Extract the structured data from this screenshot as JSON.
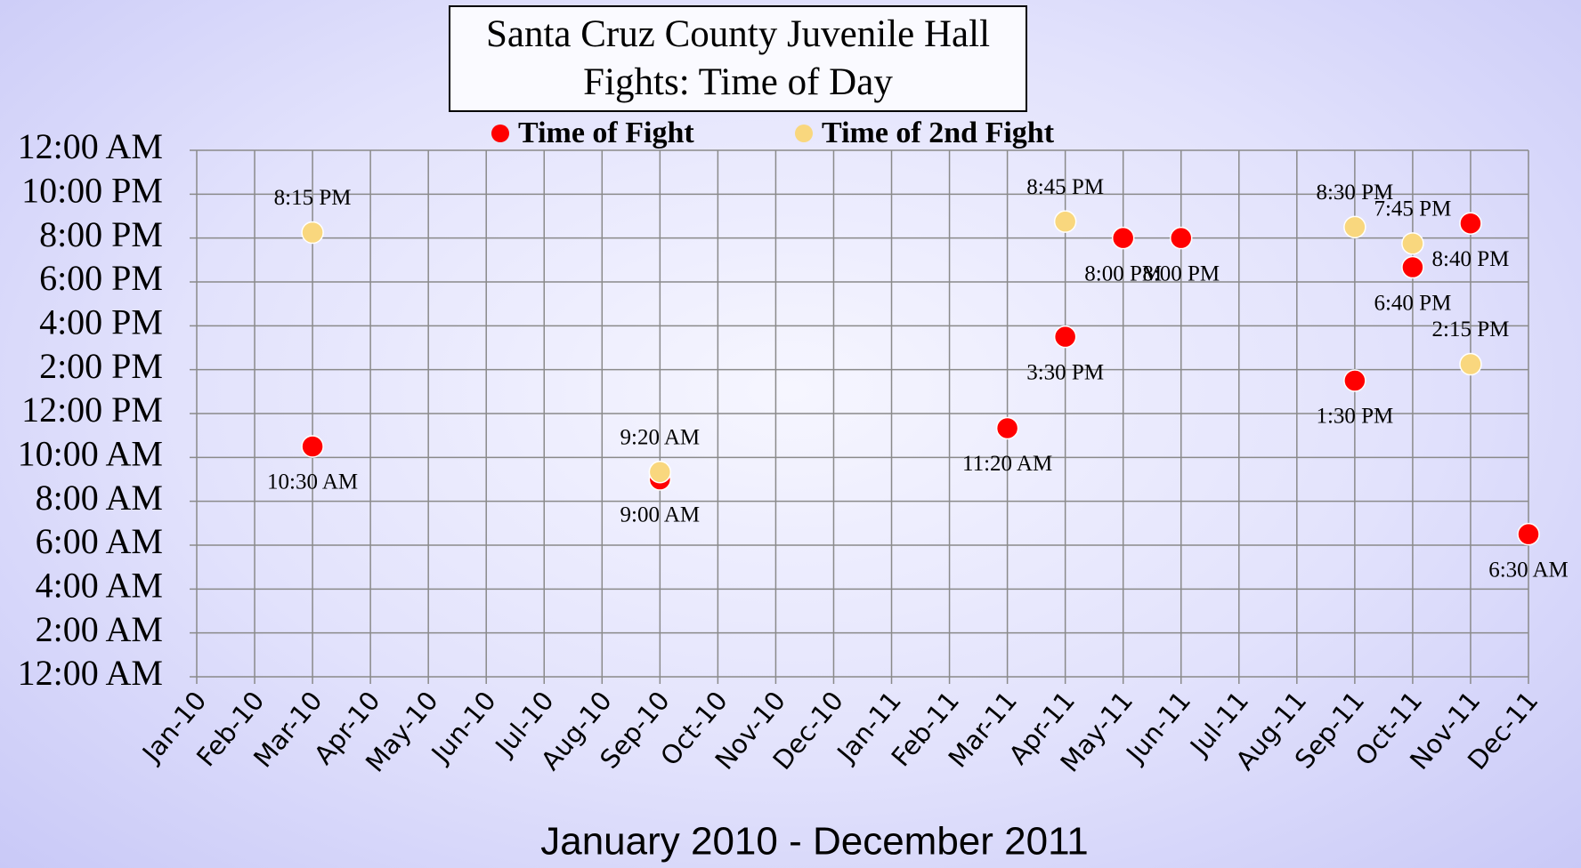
{
  "chart_data": {
    "type": "scatter",
    "title": [
      "Santa Cruz County Juvenile Hall",
      "Fights: Time of Day"
    ],
    "x_label": "January 2010 - December 2011",
    "categories": [
      "Jan-10",
      "Feb-10",
      "Mar-10",
      "Apr-10",
      "May-10",
      "Jun-10",
      "Jul-10",
      "Aug-10",
      "Sep-10",
      "Oct-10",
      "Nov-10",
      "Dec-10",
      "Jan-11",
      "Feb-11",
      "Mar-11",
      "Apr-11",
      "May-11",
      "Jun-11",
      "Jul-11",
      "Aug-11",
      "Sep-11",
      "Oct-11",
      "Nov-11",
      "Dec-11"
    ],
    "ylim": [
      0,
      24
    ],
    "yticks": [
      {
        "value": 0,
        "label": "12:00 AM"
      },
      {
        "value": 2,
        "label": "2:00 AM"
      },
      {
        "value": 4,
        "label": "4:00 AM"
      },
      {
        "value": 6,
        "label": "6:00 AM"
      },
      {
        "value": 8,
        "label": "8:00 AM"
      },
      {
        "value": 10,
        "label": "10:00 AM"
      },
      {
        "value": 12,
        "label": "12:00 PM"
      },
      {
        "value": 14,
        "label": "2:00 PM"
      },
      {
        "value": 16,
        "label": "4:00 PM"
      },
      {
        "value": 18,
        "label": "6:00 PM"
      },
      {
        "value": 20,
        "label": "8:00 PM"
      },
      {
        "value": 22,
        "label": "10:00 PM"
      },
      {
        "value": 24,
        "label": "12:00 AM"
      }
    ],
    "grid": true,
    "legend": "top",
    "series": [
      {
        "name": "Time of Fight",
        "color": "#ff0000",
        "values": [
          null,
          null,
          10.5,
          null,
          null,
          null,
          null,
          null,
          9,
          null,
          null,
          null,
          null,
          null,
          11.333,
          15.5,
          20,
          20,
          null,
          null,
          13.5,
          18.667,
          20.667,
          6.5
        ],
        "value_labels": [
          null,
          null,
          "10:30 AM",
          null,
          null,
          null,
          null,
          null,
          "9:00 AM",
          null,
          null,
          null,
          null,
          null,
          "11:20 AM",
          "3:30 PM",
          "8:00 PM",
          "8:00 PM",
          null,
          null,
          "1:30 PM",
          "6:40 PM",
          "8:40 PM",
          "6:30 AM"
        ]
      },
      {
        "name": "Time of 2nd Fight",
        "color": "#f9d77e",
        "values": [
          null,
          null,
          20.25,
          null,
          null,
          null,
          null,
          null,
          9.333,
          null,
          null,
          null,
          null,
          null,
          null,
          20.75,
          null,
          null,
          null,
          null,
          20.5,
          19.75,
          14.25,
          null
        ],
        "value_labels": [
          null,
          null,
          "8:15 PM",
          null,
          null,
          null,
          null,
          null,
          "9:20 AM",
          null,
          null,
          null,
          null,
          null,
          null,
          "8:45 PM",
          null,
          null,
          null,
          null,
          "8:30 PM",
          "7:45 PM",
          "2:15 PM",
          null
        ]
      }
    ]
  }
}
